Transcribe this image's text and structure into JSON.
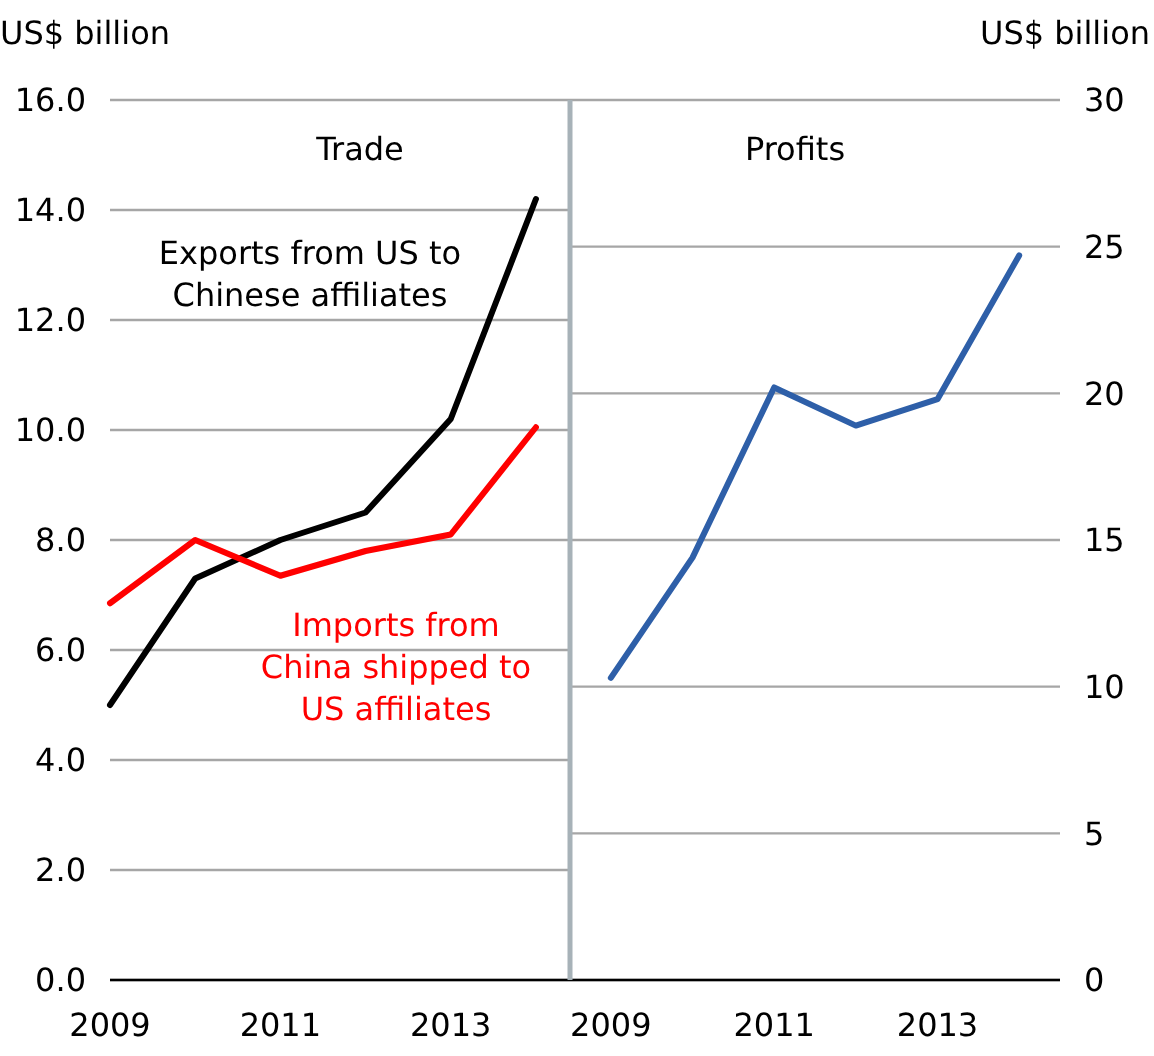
{
  "chart_data": [
    {
      "type": "line",
      "title": "Trade",
      "ylabel": "US$ billion",
      "x": [
        2009,
        2010,
        2011,
        2012,
        2013,
        2014
      ],
      "xlim": [
        2009,
        2014.4
      ],
      "xticks": [
        2009,
        2011,
        2013
      ],
      "ylim": [
        0,
        16
      ],
      "yticks": [
        {
          "value": 0,
          "label": "0.0"
        },
        {
          "value": 2,
          "label": "2.0"
        },
        {
          "value": 4,
          "label": "4.0"
        },
        {
          "value": 6,
          "label": "6.0"
        },
        {
          "value": 8,
          "label": "8.0"
        },
        {
          "value": 10,
          "label": "10.0"
        },
        {
          "value": 12,
          "label": "12.0"
        },
        {
          "value": 14,
          "label": "14.0"
        },
        {
          "value": 16,
          "label": "16.0"
        }
      ],
      "grid": "y",
      "series": [
        {
          "name": "Exports from US to Chinese affiliates",
          "color": "#000000",
          "values": [
            5.0,
            7.3,
            8.0,
            8.5,
            10.2,
            14.2
          ]
        },
        {
          "name": "Imports from China shipped to US affiliates",
          "color": "#ff0000",
          "values": [
            6.85,
            8.0,
            7.35,
            7.8,
            8.1,
            10.05
          ]
        }
      ]
    },
    {
      "type": "line",
      "title": "Profits",
      "y2label": "US$ billion",
      "x": [
        2009,
        2010,
        2011,
        2012,
        2013,
        2014
      ],
      "xlim": [
        2008.5,
        2014.5
      ],
      "xticks": [
        2009,
        2011,
        2013
      ],
      "y2lim": [
        0,
        30
      ],
      "y2ticks": [
        0,
        5,
        10,
        15,
        20,
        25,
        30
      ],
      "grid": "y",
      "series": [
        {
          "color": "#2e5fa8",
          "values": [
            10.3,
            14.4,
            20.2,
            18.9,
            19.8,
            24.7
          ],
          "axis": "y2"
        }
      ]
    }
  ]
}
